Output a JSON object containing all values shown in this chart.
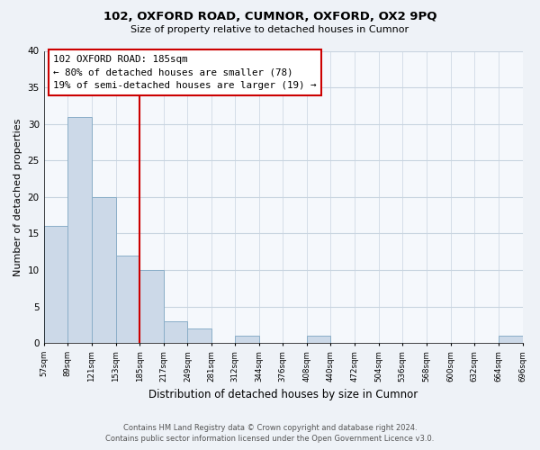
{
  "title": "102, OXFORD ROAD, CUMNOR, OXFORD, OX2 9PQ",
  "subtitle": "Size of property relative to detached houses in Cumnor",
  "xlabel": "Distribution of detached houses by size in Cumnor",
  "ylabel": "Number of detached properties",
  "footer_line1": "Contains HM Land Registry data © Crown copyright and database right 2024.",
  "footer_line2": "Contains public sector information licensed under the Open Government Licence v3.0.",
  "bar_edges": [
    57,
    89,
    121,
    153,
    185,
    217,
    249,
    281,
    312,
    344,
    376,
    408,
    440,
    472,
    504,
    536,
    568,
    600,
    632,
    664,
    696
  ],
  "bar_heights": [
    16,
    31,
    20,
    12,
    10,
    3,
    2,
    0,
    1,
    0,
    0,
    1,
    0,
    0,
    0,
    0,
    0,
    0,
    0,
    1
  ],
  "bar_color": "#ccd9e8",
  "bar_edgecolor": "#8aaec8",
  "highlight_x": 185,
  "highlight_color": "#cc0000",
  "annotation_title": "102 OXFORD ROAD: 185sqm",
  "annotation_line2": "← 80% of detached houses are smaller (78)",
  "annotation_line3": "19% of semi-detached houses are larger (19) →",
  "xlim_left": 57,
  "xlim_right": 696,
  "ylim_top": 40,
  "tick_labels": [
    "57sqm",
    "89sqm",
    "121sqm",
    "153sqm",
    "185sqm",
    "217sqm",
    "249sqm",
    "281sqm",
    "312sqm",
    "344sqm",
    "376sqm",
    "408sqm",
    "440sqm",
    "472sqm",
    "504sqm",
    "536sqm",
    "568sqm",
    "600sqm",
    "632sqm",
    "664sqm",
    "696sqm"
  ],
  "tick_positions": [
    57,
    89,
    121,
    153,
    185,
    217,
    249,
    281,
    312,
    344,
    376,
    408,
    440,
    472,
    504,
    536,
    568,
    600,
    632,
    664,
    696
  ],
  "bg_color": "#eef2f7",
  "plot_bg_color": "#f5f8fc",
  "grid_color": "#c8d4e0",
  "yticks": [
    0,
    5,
    10,
    15,
    20,
    25,
    30,
    35,
    40
  ]
}
